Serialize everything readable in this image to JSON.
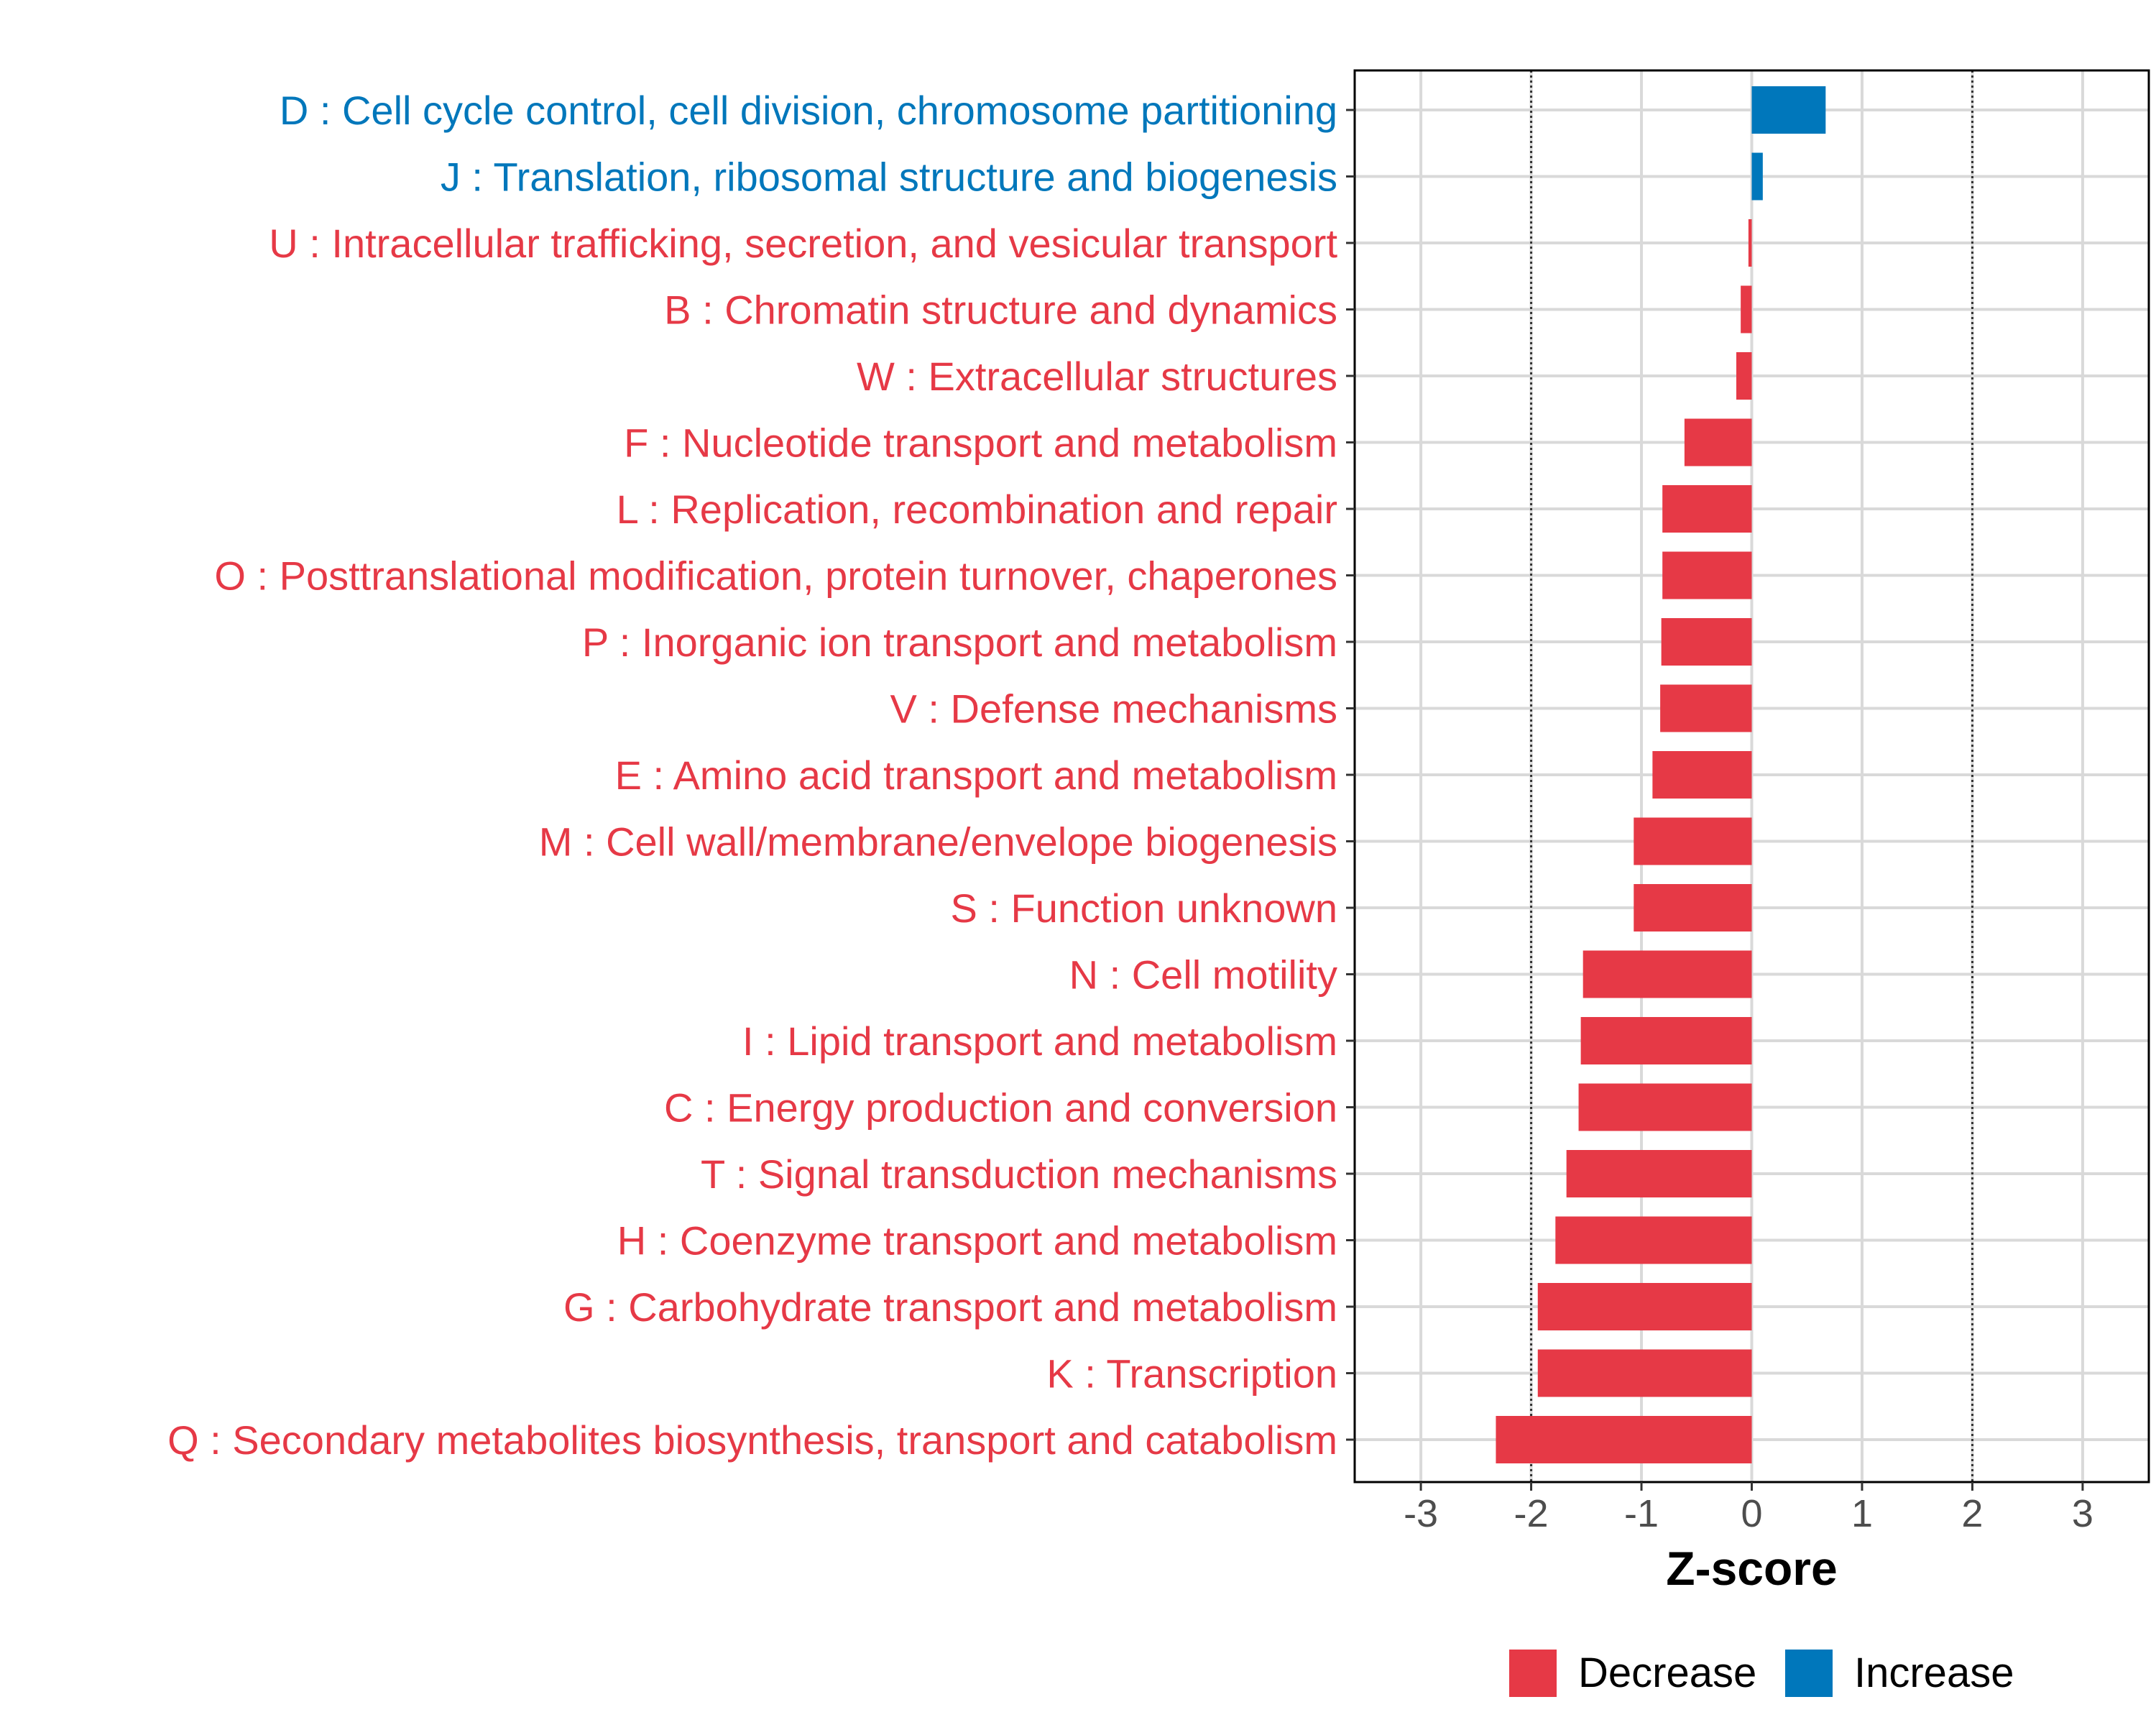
{
  "chart_data": {
    "type": "bar",
    "orientation": "horizontal",
    "title": "",
    "xlabel": "Z-score",
    "ylabel": "",
    "xlim": [
      -3.6,
      3.6
    ],
    "x_ticks": [
      -3,
      -2,
      -1,
      0,
      1,
      2,
      3
    ],
    "x_tick_labels": [
      "-3",
      "-2",
      "-1",
      "0",
      "1",
      "2",
      "3"
    ],
    "reference_lines": [
      -2,
      2
    ],
    "grid": true,
    "legend_position": "bottom-right",
    "legend": [
      {
        "name": "Decrease",
        "color": "#e63946"
      },
      {
        "name": "Increase",
        "color": "#0077bb"
      }
    ],
    "categories": [
      "D : Cell cycle control, cell division, chromosome partitioning",
      "J : Translation, ribosomal structure and biogenesis",
      "U : Intracellular trafficking, secretion, and vesicular transport",
      "B : Chromatin structure and dynamics",
      "W : Extracellular structures",
      "F : Nucleotide transport and metabolism",
      "L : Replication, recombination and repair",
      "O : Posttranslational modification, protein turnover, chaperones",
      "P : Inorganic ion transport and metabolism",
      "V : Defense mechanisms",
      "E : Amino acid transport and metabolism",
      "M : Cell wall/membrane/envelope biogenesis",
      "S : Function unknown",
      "N : Cell motility",
      "I : Lipid transport and metabolism",
      "C : Energy production and conversion",
      "T : Signal transduction mechanisms",
      "H : Coenzyme transport and metabolism",
      "G : Carbohydrate transport and metabolism",
      "K : Transcription",
      "Q : Secondary metabolites biosynthesis, transport and catabolism"
    ],
    "values": [
      0.67,
      0.1,
      -0.03,
      -0.1,
      -0.14,
      -0.61,
      -0.81,
      -0.81,
      -0.82,
      -0.83,
      -0.9,
      -1.07,
      -1.07,
      -1.53,
      -1.55,
      -1.57,
      -1.68,
      -1.78,
      -1.94,
      -1.94,
      -2.32
    ],
    "groups": [
      "Increase",
      "Increase",
      "Decrease",
      "Decrease",
      "Decrease",
      "Decrease",
      "Decrease",
      "Decrease",
      "Decrease",
      "Decrease",
      "Decrease",
      "Decrease",
      "Decrease",
      "Decrease",
      "Decrease",
      "Decrease",
      "Decrease",
      "Decrease",
      "Decrease",
      "Decrease",
      "Decrease"
    ]
  }
}
